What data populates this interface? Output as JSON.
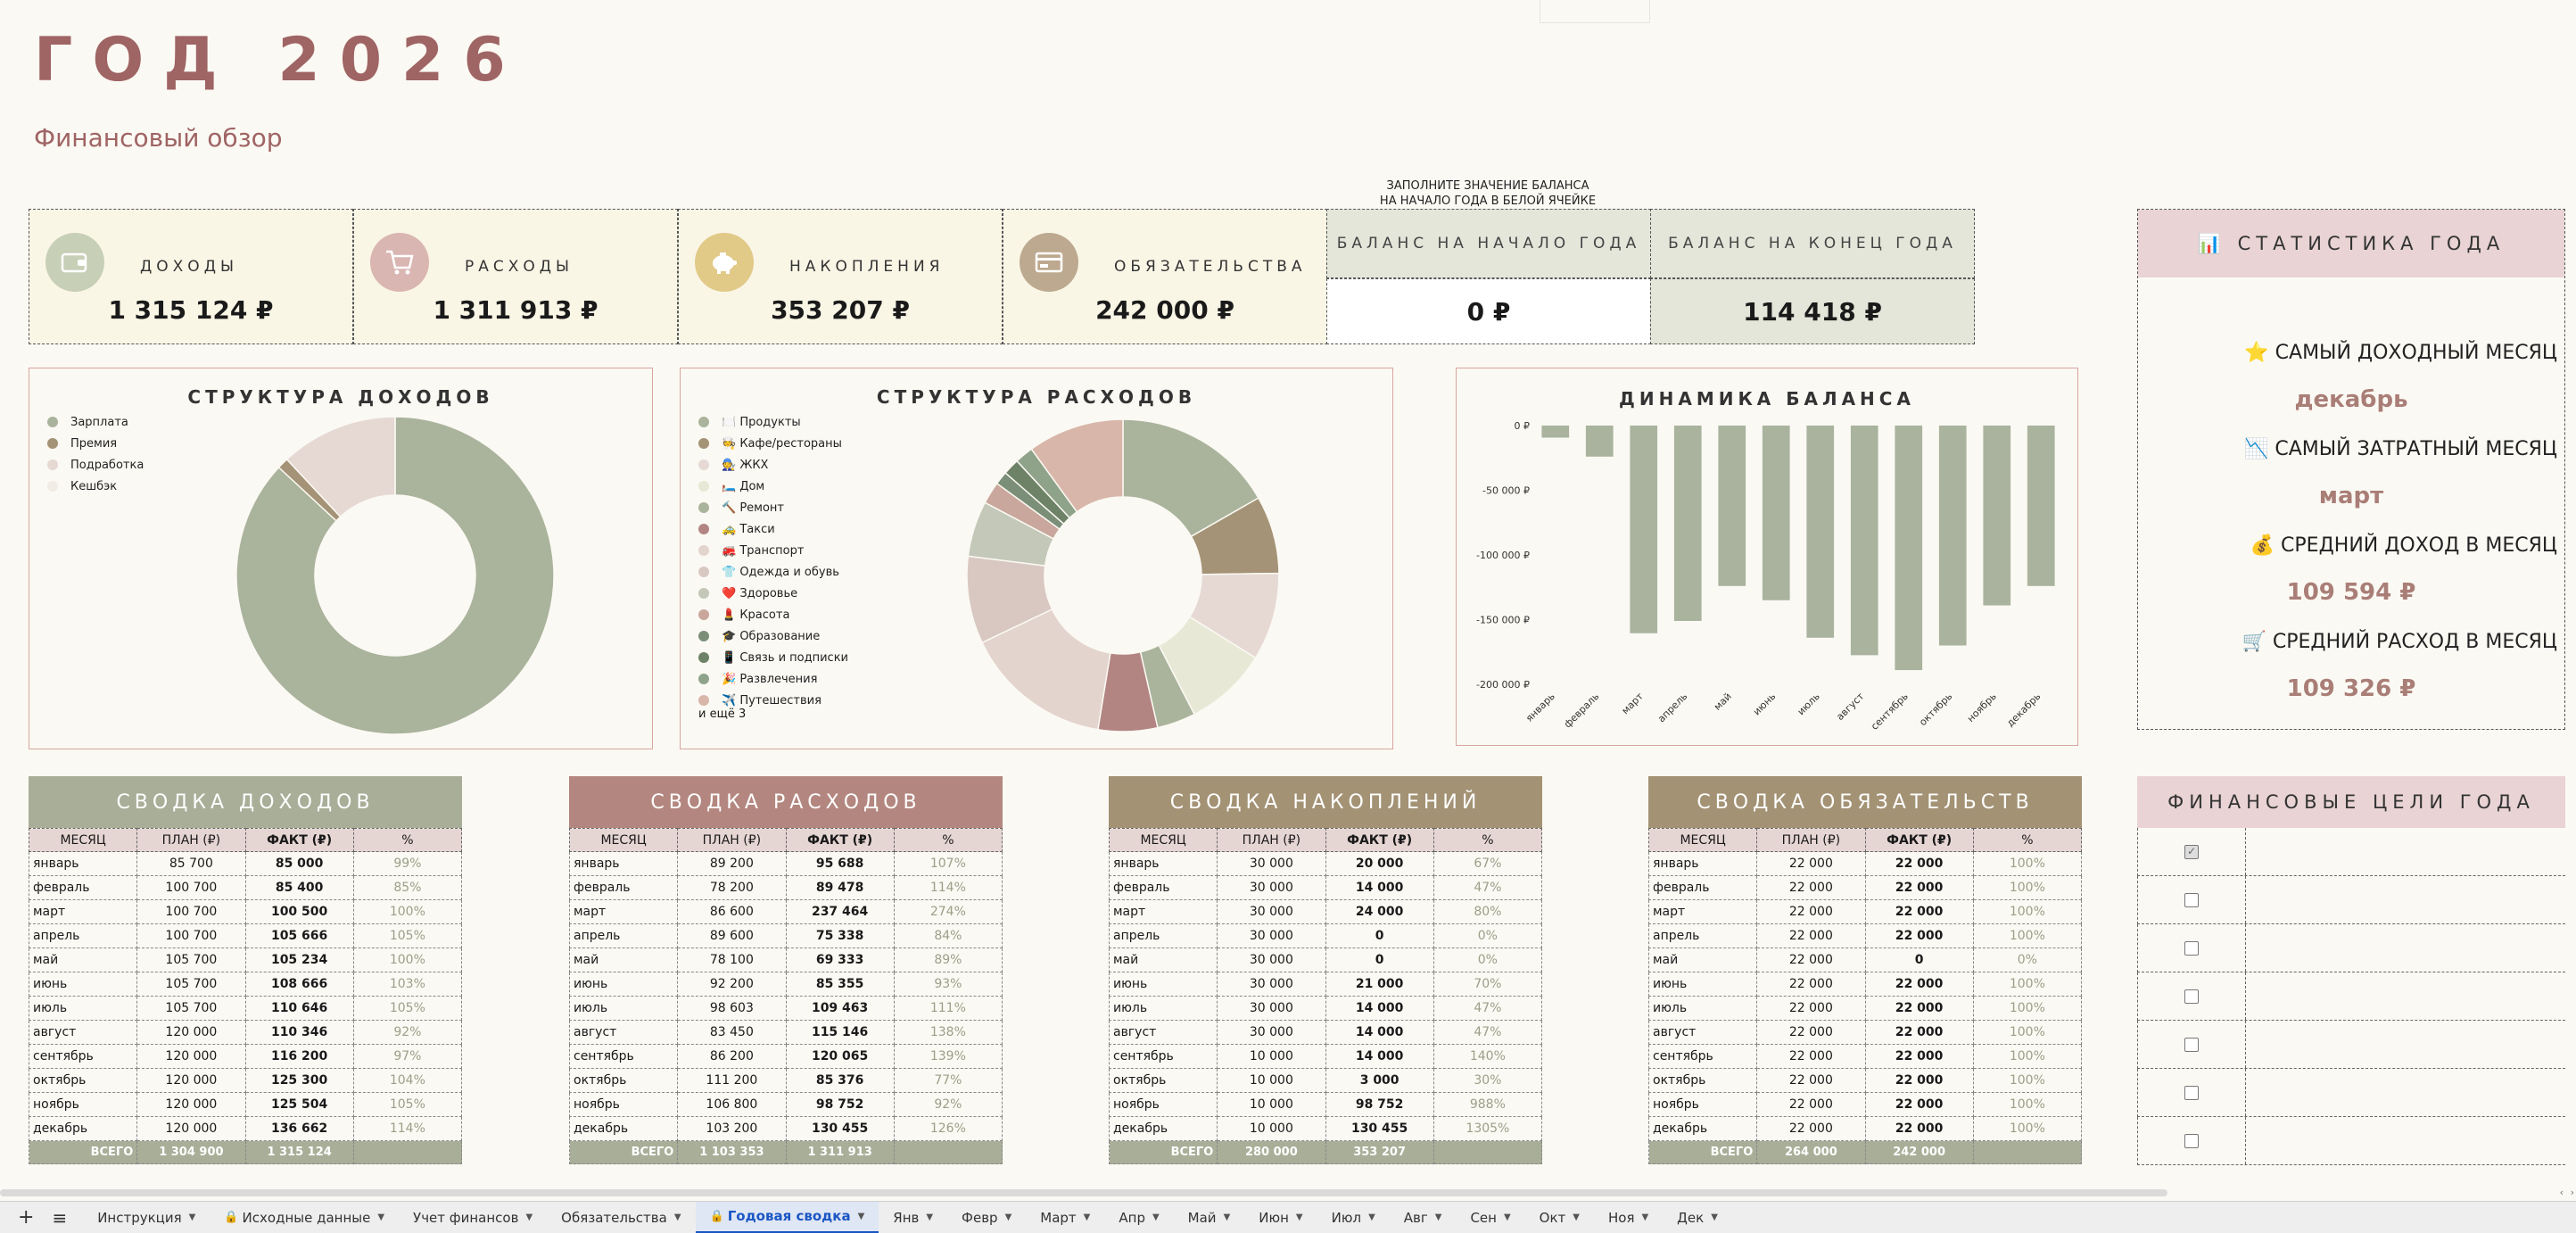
{
  "header": {
    "title": "ГОД 2026",
    "subtitle": "Финансовый обзор"
  },
  "kpis": [
    {
      "label": "ДОХОДЫ",
      "value": "1 315 124 ₽",
      "icon": "wallet-icon",
      "color": "#c8cfb7"
    },
    {
      "label": "РАСХОДЫ",
      "value": "1 311 913 ₽",
      "icon": "cart-icon",
      "color": "#d9b6b2"
    },
    {
      "label": "НАКОПЛЕНИЯ",
      "value": "353 207 ₽",
      "icon": "piggy-bank-icon",
      "color": "#e1c988"
    },
    {
      "label": "ОБЯЗАТЕЛЬСТВА",
      "value": "242 000 ₽",
      "icon": "card-icon",
      "color": "#bda98f"
    }
  ],
  "balance": {
    "note_line1": "ЗАПОЛНИТЕ ЗНАЧЕНИЕ БАЛАНСА",
    "note_line2": "НА НАЧАЛО ГОДА В БЕЛОЙ ЯЧЕЙКЕ",
    "start_label": "БАЛАНС НА НАЧАЛО ГОДА",
    "start_value": "0 ₽",
    "end_label": "БАЛАНС НА КОНЕЦ ГОДА",
    "end_value": "114 418 ₽"
  },
  "stats": {
    "title": "📊 СТАТИСТИКА ГОДА",
    "items": [
      {
        "label": "⭐ САМЫЙ ДОХОДНЫЙ МЕСЯЦ",
        "value": "декабрь"
      },
      {
        "label": "📉 САМЫЙ ЗАТРАТНЫЙ МЕСЯЦ",
        "value": "март"
      },
      {
        "label": "💰 СРЕДНИЙ ДОХОД В МЕСЯЦ",
        "value": "109 594 ₽"
      },
      {
        "label": "🛒 СРЕДНИЙ РАСХОД В МЕСЯЦ",
        "value": "109 326 ₽"
      }
    ]
  },
  "chart_data": [
    {
      "type": "pie",
      "title": "СТРУКТУРА ДОХОДОВ",
      "donut": true,
      "categories": [
        "Зарплата",
        "Премия",
        "Подработка",
        "Кешбэк"
      ],
      "values": [
        1143000,
        15000,
        157124,
        0
      ],
      "colors": [
        "#aab39c",
        "#a59377",
        "#e6d9d4",
        "#f1ece4"
      ],
      "legend": "top-left"
    },
    {
      "type": "pie",
      "title": "СТРУКТУРА РАСХОДОВ",
      "donut": true,
      "categories": [
        "🍽️ Продукты",
        "🧑‍🍳 Кафе/рестораны",
        "🧑‍🔧 ЖКХ",
        "🛏️ Дом",
        "🔨 Ремонт",
        "🚕 Такси",
        "🚒 Транспорт",
        "👕 Одежда и обувь",
        "❤️ Здоровье",
        "💄 Красота",
        "🎓 Образование",
        "📱 Связь и подписки",
        "🎉 Развлечения",
        "✈️ Путешествия"
      ],
      "values": [
        218000,
        105000,
        118000,
        112000,
        52000,
        80000,
        200000,
        118000,
        75000,
        30000,
        18000,
        22000,
        25000,
        130000
      ],
      "colors": [
        "#aab39c",
        "#a59377",
        "#e6d9d4",
        "#e8e8d6",
        "#aab39c",
        "#b28582",
        "#e4d4ce",
        "#d9c8c2",
        "#c3c8b9",
        "#c9a79c",
        "#7b8f78",
        "#6d8266",
        "#8fa38a",
        "#d8b6a9"
      ],
      "extra_label": "и ещё 3",
      "legend": "left"
    },
    {
      "type": "bar",
      "title": "ДИНАМИКА БАЛАНСА",
      "categories": [
        "январь",
        "февраль",
        "март",
        "апрель",
        "май",
        "июнь",
        "июль",
        "август",
        "сентябрь",
        "октябрь",
        "ноябрь",
        "декабрь"
      ],
      "values": [
        -9300,
        -24000,
        -160500,
        -151000,
        -124000,
        -135000,
        -164000,
        -177500,
        -189000,
        -170000,
        -139000,
        -124000
      ],
      "ylim": [
        -200000,
        0
      ],
      "yticks": [
        "0 ₽",
        "-50 000 ₽",
        "-100 000 ₽",
        "-150 000 ₽",
        "-200 000 ₽"
      ],
      "color": "#a9b39e",
      "grid": false
    }
  ],
  "summaries": [
    {
      "title": "СВОДКА ДОХОДОВ",
      "color": "#a9ae98",
      "headers": [
        "МЕСЯЦ",
        "ПЛАН (₽)",
        "ФАКТ (₽)",
        "%"
      ],
      "rows": [
        [
          "январь",
          "85 700",
          "85 000",
          "99%"
        ],
        [
          "февраль",
          "100 700",
          "85 400",
          "85%"
        ],
        [
          "март",
          "100 700",
          "100 500",
          "100%"
        ],
        [
          "апрель",
          "100 700",
          "105 666",
          "105%"
        ],
        [
          "май",
          "105 700",
          "105 234",
          "100%"
        ],
        [
          "июнь",
          "105 700",
          "108 666",
          "103%"
        ],
        [
          "июль",
          "105 700",
          "110 646",
          "105%"
        ],
        [
          "август",
          "120 000",
          "110 346",
          "92%"
        ],
        [
          "сентябрь",
          "120 000",
          "116 200",
          "97%"
        ],
        [
          "октябрь",
          "120 000",
          "125 300",
          "104%"
        ],
        [
          "ноябрь",
          "120 000",
          "125 504",
          "105%"
        ],
        [
          "декабрь",
          "120 000",
          "136 662",
          "114%"
        ]
      ],
      "total": [
        "ВСЕГО",
        "1 304 900",
        "1 315 124",
        ""
      ]
    },
    {
      "title": "СВОДКА РАСХОДОВ",
      "color": "#b3877f",
      "headers": [
        "МЕСЯЦ",
        "ПЛАН (₽)",
        "ФАКТ (₽)",
        "%"
      ],
      "rows": [
        [
          "январь",
          "89 200",
          "95 688",
          "107%"
        ],
        [
          "февраль",
          "78 200",
          "89 478",
          "114%"
        ],
        [
          "март",
          "86 600",
          "237 464",
          "274%"
        ],
        [
          "апрель",
          "89 600",
          "75 338",
          "84%"
        ],
        [
          "май",
          "78 100",
          "69 333",
          "89%"
        ],
        [
          "июнь",
          "92 200",
          "85 355",
          "93%"
        ],
        [
          "июль",
          "98 603",
          "109 463",
          "111%"
        ],
        [
          "август",
          "83 450",
          "115 146",
          "138%"
        ],
        [
          "сентябрь",
          "86 200",
          "120 065",
          "139%"
        ],
        [
          "октябрь",
          "111 200",
          "85 376",
          "77%"
        ],
        [
          "ноябрь",
          "106 800",
          "98 752",
          "92%"
        ],
        [
          "декабрь",
          "103 200",
          "130 455",
          "126%"
        ]
      ],
      "total": [
        "ВСЕГО",
        "1 103 353",
        "1 311 913",
        ""
      ]
    },
    {
      "title": "СВОДКА НАКОПЛЕНИЙ",
      "color": "#a39274",
      "headers": [
        "МЕСЯЦ",
        "ПЛАН (₽)",
        "ФАКТ (₽)",
        "%"
      ],
      "rows": [
        [
          "январь",
          "30 000",
          "20 000",
          "67%"
        ],
        [
          "февраль",
          "30 000",
          "14 000",
          "47%"
        ],
        [
          "март",
          "30 000",
          "24 000",
          "80%"
        ],
        [
          "апрель",
          "30 000",
          "0",
          "0%"
        ],
        [
          "май",
          "30 000",
          "0",
          "0%"
        ],
        [
          "июнь",
          "30 000",
          "21 000",
          "70%"
        ],
        [
          "июль",
          "30 000",
          "14 000",
          "47%"
        ],
        [
          "август",
          "30 000",
          "14 000",
          "47%"
        ],
        [
          "сентябрь",
          "10 000",
          "14 000",
          "140%"
        ],
        [
          "октябрь",
          "10 000",
          "3 000",
          "30%"
        ],
        [
          "ноябрь",
          "10 000",
          "98 752",
          "988%"
        ],
        [
          "декабрь",
          "10 000",
          "130 455",
          "1305%"
        ]
      ],
      "total": [
        "ВСЕГО",
        "280 000",
        "353 207",
        ""
      ]
    },
    {
      "title": "СВОДКА ОБЯЗАТЕЛЬСТВ",
      "color": "#a39274",
      "headers": [
        "МЕСЯЦ",
        "ПЛАН (₽)",
        "ФАКТ (₽)",
        "%"
      ],
      "rows": [
        [
          "январь",
          "22 000",
          "22 000",
          "100%"
        ],
        [
          "февраль",
          "22 000",
          "22 000",
          "100%"
        ],
        [
          "март",
          "22 000",
          "22 000",
          "100%"
        ],
        [
          "апрель",
          "22 000",
          "22 000",
          "100%"
        ],
        [
          "май",
          "22 000",
          "0",
          "0%"
        ],
        [
          "июнь",
          "22 000",
          "22 000",
          "100%"
        ],
        [
          "июль",
          "22 000",
          "22 000",
          "100%"
        ],
        [
          "август",
          "22 000",
          "22 000",
          "100%"
        ],
        [
          "сентябрь",
          "22 000",
          "22 000",
          "100%"
        ],
        [
          "октябрь",
          "22 000",
          "22 000",
          "100%"
        ],
        [
          "ноябрь",
          "22 000",
          "22 000",
          "100%"
        ],
        [
          "декабрь",
          "22 000",
          "22 000",
          "100%"
        ]
      ],
      "total": [
        "ВСЕГО",
        "264 000",
        "242 000",
        ""
      ]
    }
  ],
  "goals": {
    "title": "ФИНАНСОВЫЕ ЦЕЛИ ГОДА",
    "checks": [
      true,
      false,
      false,
      false,
      false,
      false,
      false
    ]
  },
  "tabs": [
    {
      "label": "Инструкция",
      "lock": false,
      "active": false
    },
    {
      "label": "Исходные данные",
      "lock": true,
      "active": false
    },
    {
      "label": "Учет финансов",
      "lock": false,
      "active": false
    },
    {
      "label": "Обязательства",
      "lock": false,
      "active": false
    },
    {
      "label": "Годовая сводка",
      "lock": true,
      "active": true
    },
    {
      "label": "Янв",
      "lock": false,
      "active": false
    },
    {
      "label": "Февр",
      "lock": false,
      "active": false
    },
    {
      "label": "Март",
      "lock": false,
      "active": false
    },
    {
      "label": "Апр",
      "lock": false,
      "active": false
    },
    {
      "label": "Май",
      "lock": false,
      "active": false
    },
    {
      "label": "Июн",
      "lock": false,
      "active": false
    },
    {
      "label": "Июл",
      "lock": false,
      "active": false
    },
    {
      "label": "Авг",
      "lock": false,
      "active": false
    },
    {
      "label": "Сен",
      "lock": false,
      "active": false
    },
    {
      "label": "Окт",
      "lock": false,
      "active": false
    },
    {
      "label": "Ноя",
      "lock": false,
      "active": false
    },
    {
      "label": "Дек",
      "lock": false,
      "active": false
    }
  ]
}
